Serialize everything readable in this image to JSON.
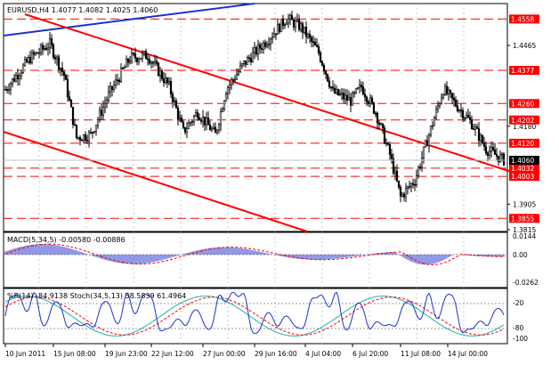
{
  "main_chart": {
    "header": "EURUSD,H4  1.4077 1.4082 1.4025 1.4060",
    "price_axis": [
      "1.4558",
      "1.4465",
      "1.4377",
      "1.4260",
      "1.4202",
      "1.4180",
      "1.4120",
      "1.4060",
      "1.4032",
      "1.4003",
      "1.3905",
      "1.3855",
      "1.3815"
    ],
    "hline_labels": [
      "1.4558",
      "1.4377",
      "1.4260",
      "1.4202",
      "1.4120",
      "1.4032",
      "1.4003",
      "1.3855"
    ],
    "current_price": "1.4060",
    "colors": {
      "candle": "#000000",
      "hline": "#ff0000",
      "channel": "#ff0000",
      "trendline": "#1a33cc",
      "label_box": "#ff0000",
      "current_box": "#000000"
    }
  },
  "macd_panel": {
    "header": "MACD(5,34,5) -0.00580 -0.00886",
    "axis": [
      "0.0144",
      "0.00",
      "-0.0262"
    ],
    "colors": {
      "histogram": "#2233cc",
      "signal": "#ff0000"
    }
  },
  "osc_panel": {
    "header": "%R(14) -84.9138  Stoch(34,5,13) 58.5839 61.4964",
    "axis": [
      "0",
      "-20",
      "-80",
      "-100"
    ],
    "colors": {
      "wpr": "#1a33cc",
      "stoch_main": "#20b2aa",
      "stoch_signal": "#ff0000"
    }
  },
  "time_axis": [
    "10 Jun 2011",
    "15 Jun 08:00",
    "19 Jun 23:00",
    "22 Jun 12:00",
    "27 Jun 00:00",
    "29 Jun 16:00",
    "4 Jul 04:00",
    "6 Jul 20:00",
    "11 Jul 08:00",
    "14 Jul 00:00"
  ]
}
